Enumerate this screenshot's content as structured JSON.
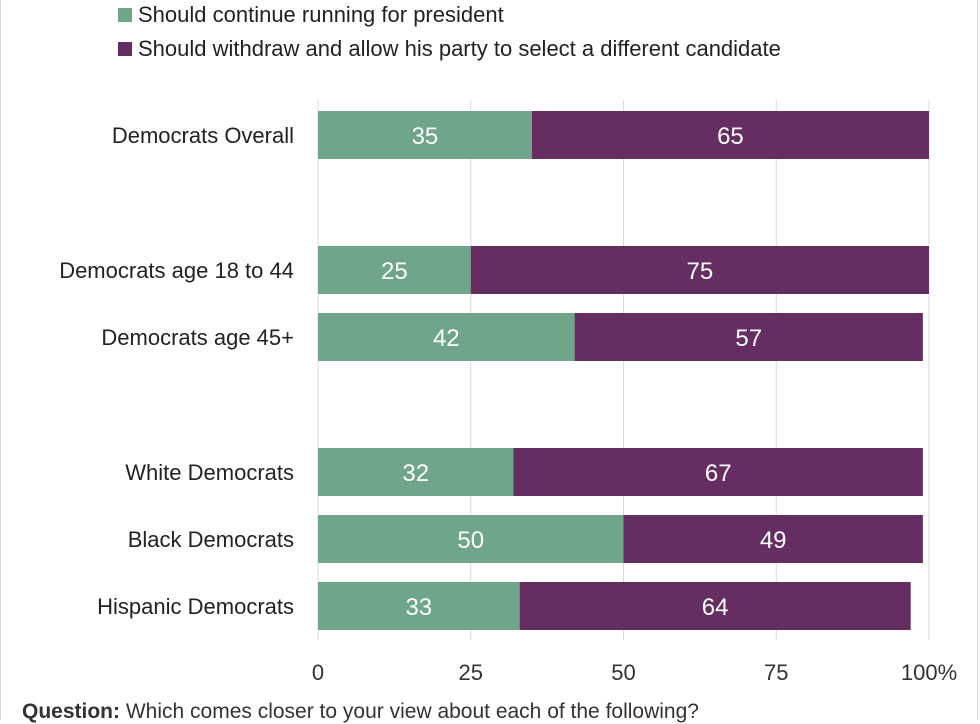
{
  "chart_data": {
    "type": "bar",
    "stacked": true,
    "orientation": "horizontal",
    "categories": [
      "Democrats Overall",
      "Democrats age 18 to 44",
      "Democrats age 45+",
      "White Democrats",
      "Black Democrats",
      "Hispanic Democrats"
    ],
    "series": [
      {
        "name": "Should continue running for president",
        "color": "#6fa588",
        "values": [
          35,
          25,
          42,
          32,
          50,
          33
        ]
      },
      {
        "name": "Should withdraw and allow his party to select a different candidate",
        "color": "#662d62",
        "values": [
          65,
          75,
          57,
          67,
          49,
          64
        ]
      }
    ],
    "xlim": [
      0,
      100
    ],
    "xticks": [
      "0",
      "25",
      "50",
      "75",
      "100%"
    ],
    "grid": true,
    "legend_position": "top-left"
  },
  "footnote": {
    "label": "Question:",
    "text": "Which comes closer to your view about each of the following?"
  }
}
